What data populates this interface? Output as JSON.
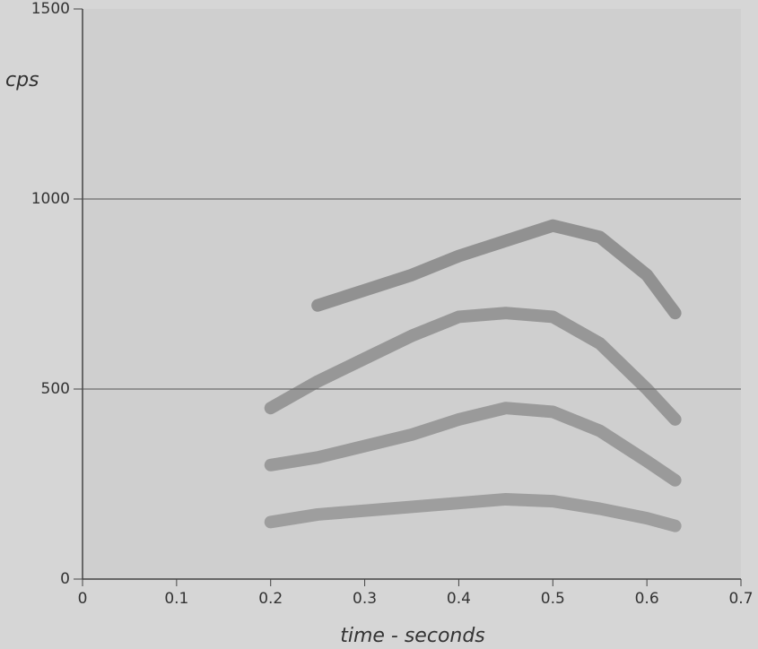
{
  "chart_data": {
    "type": "line",
    "x_label": "time - seconds",
    "y_label": "cps",
    "xlim": [
      0,
      0.7
    ],
    "xticks": [
      0,
      0.1,
      0.2,
      0.3,
      0.4,
      0.5,
      0.6,
      0.7
    ],
    "ylim": [
      0,
      1500
    ],
    "yticks": [
      0,
      500,
      1000,
      1500
    ],
    "grid": true,
    "x": [
      0.2,
      0.25,
      0.3,
      0.35,
      0.4,
      0.45,
      0.5,
      0.55,
      0.6,
      0.63
    ],
    "series": [
      {
        "color": "#5e5e5e",
        "values": [
          null,
          720,
          760,
          800,
          850,
          890,
          930,
          900,
          800,
          700
        ]
      },
      {
        "color": "#6a6a6a",
        "values": [
          450,
          520,
          580,
          640,
          690,
          700,
          690,
          620,
          500,
          420
        ]
      },
      {
        "color": "#707070",
        "values": [
          300,
          320,
          350,
          380,
          420,
          450,
          440,
          390,
          310,
          260
        ]
      },
      {
        "color": "#777777",
        "values": [
          150,
          170,
          180,
          190,
          200,
          210,
          205,
          185,
          160,
          140
        ]
      }
    ]
  }
}
